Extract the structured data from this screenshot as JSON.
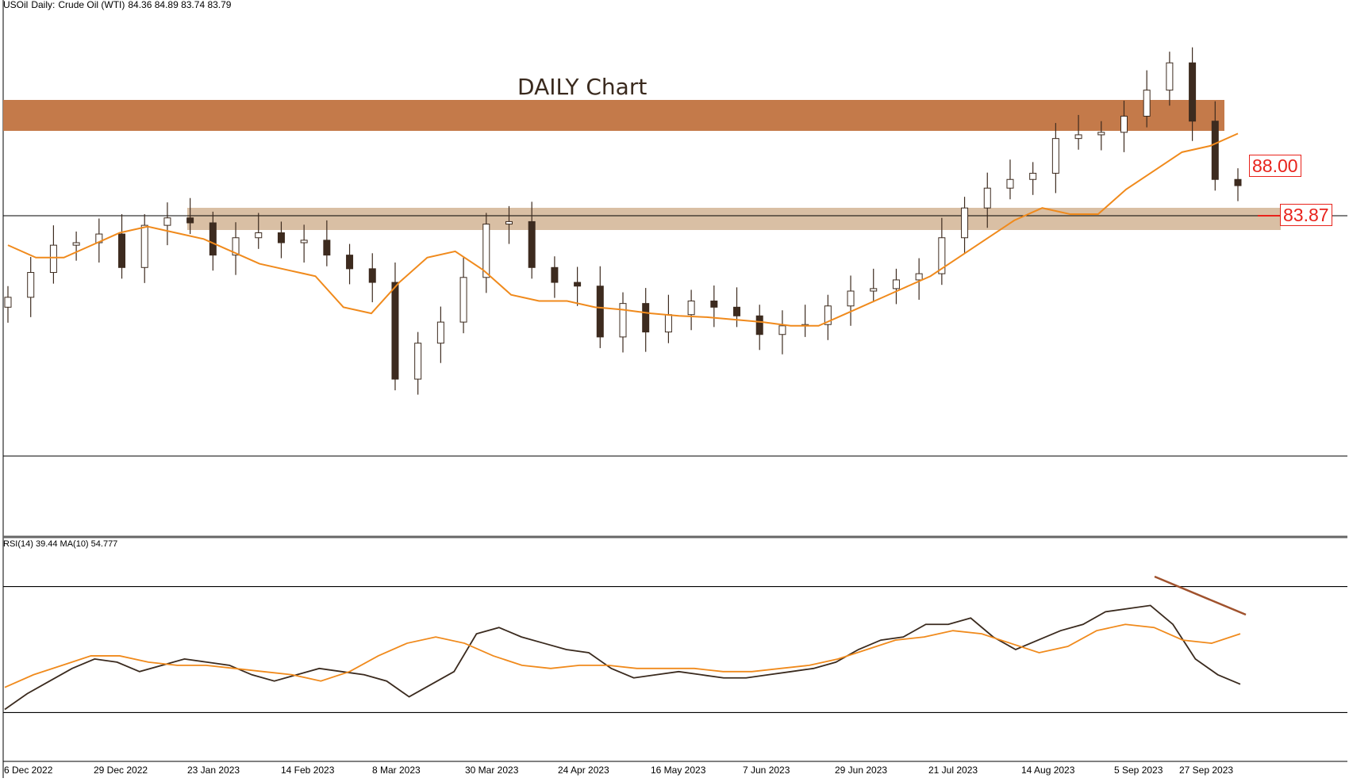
{
  "header": {
    "symbol": "USOil",
    "timeframe": "Daily:",
    "instrument": "Crude Oil (WTI)",
    "ohlc": "84.36 84.89 83.74 83.79"
  },
  "chart_title": "DAILY Chart",
  "price_labels": {
    "upper": "88.00",
    "lower": "83.87"
  },
  "rsi_header": "RSI(14) 39.44 MA(10) 54.777",
  "colors": {
    "resistance_zone": "#c47a4a",
    "support_zone": "#d9bfa4",
    "moving_average": "#f08a1c",
    "candle_outline": "#3d2b1f",
    "price_label": "#e8231c",
    "trendline": "#a0522d"
  },
  "chart_data": [
    {
      "type": "line",
      "panel": "price",
      "title": "",
      "ylim": [
        62,
        98
      ],
      "x_ticks": [
        "6 Dec 2022",
        "29 Dec 2022",
        "23 Jan 2023",
        "14 Feb 2023",
        "8 Mar 2023",
        "30 Mar 2023",
        "24 Apr 2023",
        "16 May 2023",
        "7 Jun 2023",
        "29 Jun 2023",
        "21 Jul 2023",
        "14 Aug 2023",
        "5 Sep 2023",
        "27 Sep 2023"
      ],
      "series": [
        {
          "name": "",
          "values": [
            74.8,
            76.8,
            79.0,
            79.2,
            79.9,
            77.2,
            80.6,
            81.2,
            80.8,
            78.2,
            79.6,
            80.0,
            79.2,
            79.4,
            78.2,
            77.1,
            76.0,
            68.2,
            71.1,
            72.8,
            76.4,
            80.7,
            80.9,
            77.2,
            76.0,
            75.7,
            71.6,
            74.3,
            72.0,
            73.4,
            74.5,
            74.0,
            73.3,
            71.8,
            72.5,
            72.6,
            74.1,
            75.3,
            75.5,
            76.2,
            76.7,
            79.6,
            82.0,
            83.6,
            84.3,
            84.8,
            87.6,
            87.9,
            88.1,
            89.4,
            91.5,
            93.7,
            89.0,
            84.3,
            83.8
          ]
        },
        {
          "name": "",
          "values": [
            79.0,
            78.0,
            78.0,
            79.0,
            80.0,
            80.5,
            80.0,
            79.5,
            78.5,
            77.5,
            77.0,
            76.5,
            74.0,
            73.5,
            76.0,
            78.0,
            78.5,
            77.0,
            75.0,
            74.5,
            74.5,
            74.0,
            73.8,
            73.5,
            73.3,
            73.2,
            73.0,
            72.8,
            72.5,
            72.5,
            73.5,
            74.5,
            75.5,
            76.5,
            78.0,
            79.5,
            81.0,
            82.0,
            81.5,
            81.5,
            83.5,
            85.0,
            86.5,
            87.0,
            88.0
          ]
        }
      ]
    },
    {
      "type": "line",
      "panel": "rsi",
      "title": "",
      "ylim": [
        15,
        85
      ],
      "series": [
        {
          "name": "",
          "values": [
            31,
            36,
            40,
            44,
            47,
            46,
            43,
            45,
            47,
            46,
            45,
            42,
            40,
            42,
            44,
            43,
            42,
            40,
            35,
            39,
            43,
            55,
            57,
            54,
            52,
            50,
            49,
            44,
            41,
            42,
            43,
            42,
            41,
            41,
            42,
            43,
            44,
            46,
            50,
            53,
            54,
            58,
            58,
            60,
            54,
            50,
            53,
            56,
            58,
            62,
            63,
            64,
            58,
            47,
            42,
            39
          ]
        },
        {
          "name": "",
          "values": [
            38,
            42,
            45,
            48,
            48,
            46,
            45,
            45,
            44,
            43,
            42,
            40,
            43,
            48,
            52,
            54,
            52,
            48,
            45,
            44,
            45,
            45,
            44,
            44,
            44,
            43,
            43,
            44,
            45,
            47,
            50,
            53,
            54,
            56,
            55,
            52,
            49,
            51,
            56,
            58,
            57,
            53,
            52,
            55
          ]
        }
      ]
    }
  ]
}
